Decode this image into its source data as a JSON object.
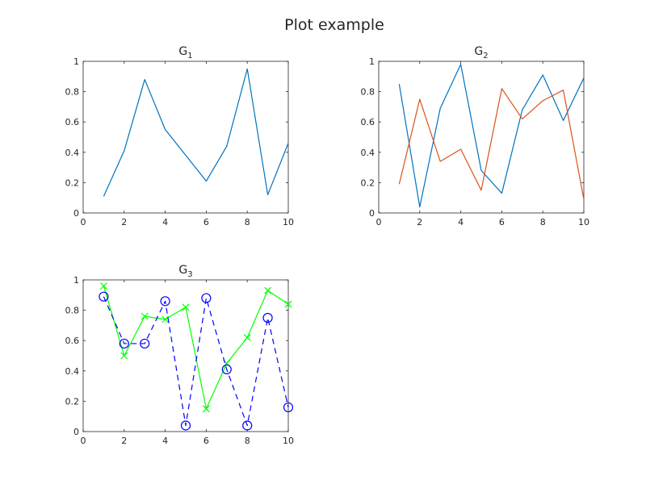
{
  "figure": {
    "title": "Plot example"
  },
  "chart_data": [
    {
      "type": "line",
      "title": "G",
      "title_subscript": "1",
      "xlabel": "",
      "ylabel": "",
      "xlim": [
        0,
        10
      ],
      "ylim": [
        0,
        1
      ],
      "xticks": [
        0,
        2,
        4,
        6,
        8,
        10
      ],
      "yticks": [
        0,
        0.2,
        0.4,
        0.6,
        0.8,
        1
      ],
      "ytick_labels": [
        "0",
        "0.2",
        "0.4",
        "0.6",
        "0.8",
        "1"
      ],
      "grid": false,
      "x": [
        1,
        2,
        3,
        4,
        5,
        6,
        7,
        8,
        9,
        10
      ],
      "series": [
        {
          "values": [
            0.11,
            0.41,
            0.88,
            0.55,
            0.38,
            0.21,
            0.44,
            0.95,
            0.12,
            0.46
          ],
          "color": "#0072BD",
          "linestyle": "solid",
          "marker": "none"
        }
      ]
    },
    {
      "type": "line",
      "title": "G",
      "title_subscript": "2",
      "xlabel": "",
      "ylabel": "",
      "xlim": [
        0,
        10
      ],
      "ylim": [
        0,
        1
      ],
      "xticks": [
        0,
        2,
        4,
        6,
        8,
        10
      ],
      "yticks": [
        0,
        0.2,
        0.4,
        0.6,
        0.8,
        1
      ],
      "ytick_labels": [
        "0",
        "0.2",
        "0.4",
        "0.6",
        "0.8",
        "1"
      ],
      "grid": false,
      "x": [
        1,
        2,
        3,
        4,
        5,
        6,
        7,
        8,
        9,
        10
      ],
      "series": [
        {
          "values": [
            0.85,
            0.04,
            0.69,
            0.98,
            0.28,
            0.13,
            0.68,
            0.91,
            0.61,
            0.89
          ],
          "color": "#0072BD",
          "linestyle": "solid",
          "marker": "none"
        },
        {
          "values": [
            0.19,
            0.75,
            0.34,
            0.42,
            0.15,
            0.82,
            0.62,
            0.74,
            0.81,
            0.09
          ],
          "color": "#D95319",
          "linestyle": "solid",
          "marker": "none"
        }
      ]
    },
    {
      "type": "line",
      "title": "G",
      "title_subscript": "3",
      "xlabel": "",
      "ylabel": "",
      "xlim": [
        0,
        10
      ],
      "ylim": [
        0,
        1
      ],
      "xticks": [
        0,
        2,
        4,
        6,
        8,
        10
      ],
      "yticks": [
        0,
        0.2,
        0.4,
        0.6,
        0.8,
        1
      ],
      "ytick_labels": [
        "0",
        "0.2",
        "0.4",
        "0.6",
        "0.8",
        "1"
      ],
      "grid": false,
      "x": [
        1,
        2,
        3,
        4,
        5,
        6,
        7,
        8,
        9,
        10
      ],
      "series": [
        {
          "values": [
            0.96,
            0.5,
            0.76,
            0.74,
            0.82,
            0.15,
            0.45,
            0.62,
            0.93,
            0.84
          ],
          "color": "#00FF00",
          "linestyle": "solid",
          "marker": "x"
        },
        {
          "values": [
            0.89,
            0.58,
            0.58,
            0.86,
            0.04,
            0.88,
            0.41,
            0.04,
            0.75,
            0.16
          ],
          "color": "#0000FF",
          "linestyle": "dashed",
          "marker": "o"
        }
      ]
    }
  ]
}
